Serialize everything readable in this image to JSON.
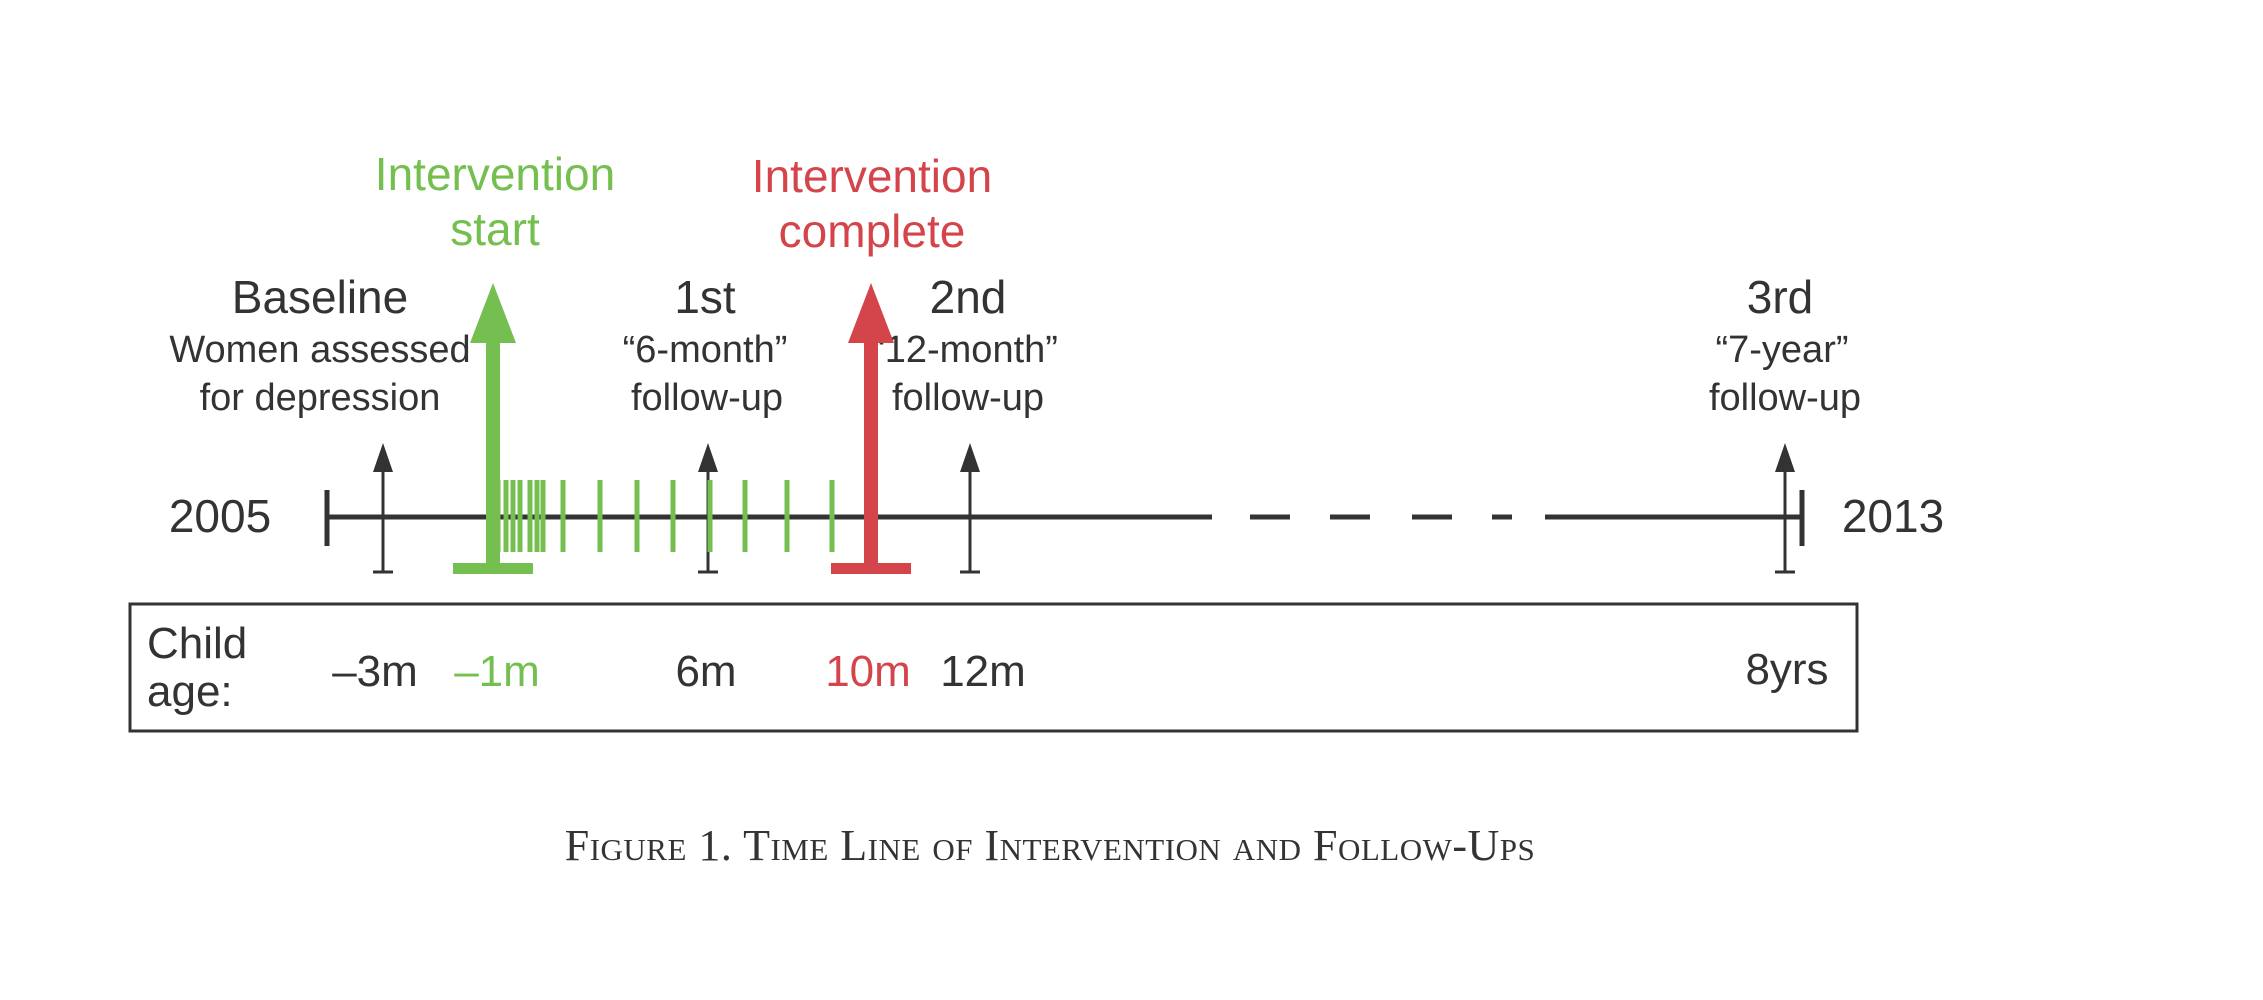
{
  "timeline": {
    "start_year": "2005",
    "end_year": "2013"
  },
  "events": {
    "baseline": {
      "title": "Baseline",
      "line1": "Women assessed",
      "line2": "for depression"
    },
    "first": {
      "title": "1st",
      "line1": "“6-month”",
      "line2": "follow-up"
    },
    "second": {
      "title": "2nd",
      "line1": "“12-month”",
      "line2": "follow-up"
    },
    "third": {
      "title": "3rd",
      "line1": "“7-year”",
      "line2": "follow-up"
    }
  },
  "intervention": {
    "start_line1": "Intervention",
    "start_line2": "start",
    "complete_line1": "Intervention",
    "complete_line2": "complete",
    "start_color": "#74bf4f",
    "complete_color": "#d4454b"
  },
  "child_age": {
    "label_line1": "Child",
    "label_line2": "age:",
    "values": {
      "baseline": "–3m",
      "start": "–1m",
      "first": "6m",
      "complete": "10m",
      "second": "12m",
      "third": "8yrs"
    }
  },
  "caption": "Figure 1. Time Line of Intervention and Follow-Ups",
  "colors": {
    "ink": "#333333",
    "green": "#74bf4f",
    "red": "#d4454b"
  }
}
